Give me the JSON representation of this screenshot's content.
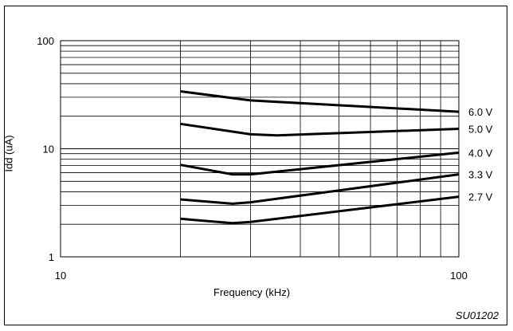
{
  "figure_code": "SU01202",
  "chart_data": {
    "type": "line",
    "xlabel": "Frequency (kHz)",
    "ylabel": "Idd (uA)",
    "x_scale": "log",
    "y_scale": "log",
    "xlim": [
      10,
      100
    ],
    "ylim": [
      1,
      100
    ],
    "x_tick_labels": [
      "10",
      "100"
    ],
    "y_tick_labels": [
      "1",
      "10",
      "100"
    ],
    "grid": true,
    "line_color": "#000000",
    "series": [
      {
        "name": "6.0 V",
        "x": [
          20,
          30,
          100
        ],
        "y": [
          34,
          28,
          22
        ]
      },
      {
        "name": "5.0 V",
        "x": [
          20,
          30,
          35,
          100
        ],
        "y": [
          17,
          13.6,
          13.3,
          15.3
        ]
      },
      {
        "name": "4.0 V",
        "x": [
          20,
          27,
          30,
          100
        ],
        "y": [
          7.1,
          5.8,
          5.8,
          9.2
        ]
      },
      {
        "name": "3.3 V",
        "x": [
          20,
          27,
          30,
          100
        ],
        "y": [
          3.4,
          3.1,
          3.2,
          5.8
        ]
      },
      {
        "name": "2.7 V",
        "x": [
          20,
          27,
          30,
          100
        ],
        "y": [
          2.25,
          2.05,
          2.1,
          3.6
        ]
      }
    ]
  }
}
